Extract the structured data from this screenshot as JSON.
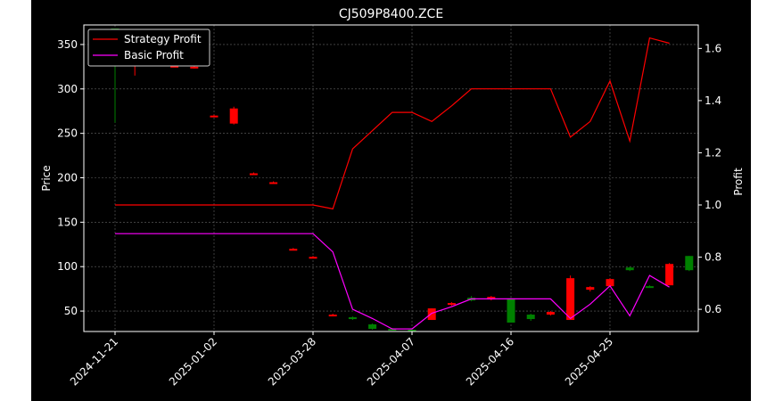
{
  "chart_data": {
    "type": "candlestick+line",
    "title": "CJ509P8400.ZCE",
    "ylabel": "Price",
    "ylabel_right": "Profit",
    "ylim": [
      27,
      372
    ],
    "ylim_right": [
      0.515,
      1.69
    ],
    "yticks": [
      50,
      100,
      150,
      200,
      250,
      300,
      350
    ],
    "yticks_right": [
      0.6,
      0.8,
      1.0,
      1.2,
      1.4,
      1.6
    ],
    "x_tick_labels": [
      {
        "index": 0,
        "label": "2024-11-21"
      },
      {
        "index": 5,
        "label": "2025-01-02"
      },
      {
        "index": 10,
        "label": "2025-03-28"
      },
      {
        "index": 15,
        "label": "2025-04-07"
      },
      {
        "index": 20,
        "label": "2025-04-16"
      },
      {
        "index": 25,
        "label": "2025-04-25"
      }
    ],
    "grid": true,
    "legend_position": "top-left",
    "colors": {
      "up": "#008000",
      "down": "#ff0000",
      "strategy": "#ff0000",
      "basic": "#ff00ff",
      "background": "#000000",
      "text": "#ffffff"
    },
    "candles": [
      {
        "open": 327,
        "high": 368,
        "low": 262,
        "close": 368
      },
      {
        "open": 330,
        "high": 332,
        "low": 315,
        "close": 327
      },
      {
        "open": 331,
        "high": 333,
        "low": 329,
        "close": 330
      },
      {
        "open": 326,
        "high": 327,
        "low": 325,
        "close": 325
      },
      {
        "open": 325,
        "high": 326,
        "low": 323,
        "close": 324
      },
      {
        "open": 270,
        "high": 271,
        "low": 269,
        "close": 269
      },
      {
        "open": 278,
        "high": 280,
        "low": 260,
        "close": 261
      },
      {
        "open": 205,
        "high": 206,
        "low": 204,
        "close": 204
      },
      {
        "open": 195,
        "high": 196,
        "low": 194,
        "close": 194
      },
      {
        "open": 120,
        "high": 121,
        "low": 119,
        "close": 119
      },
      {
        "open": 111,
        "high": 112,
        "low": 110,
        "close": 110
      },
      {
        "open": 46,
        "high": 47,
        "low": 45,
        "close": 45
      },
      {
        "open": 41,
        "high": 44,
        "low": 40,
        "close": 43
      },
      {
        "open": 30,
        "high": 36,
        "low": 29,
        "close": 35
      },
      {
        "open": 29,
        "high": 31,
        "low": 28,
        "close": 30
      },
      {
        "open": 29,
        "high": 30,
        "low": 28,
        "close": 29
      },
      {
        "open": 53,
        "high": 53,
        "low": 40,
        "close": 40
      },
      {
        "open": 59,
        "high": 60,
        "low": 56,
        "close": 57
      },
      {
        "open": 62,
        "high": 67,
        "low": 61,
        "close": 65
      },
      {
        "open": 66,
        "high": 67,
        "low": 62,
        "close": 63
      },
      {
        "open": 37,
        "high": 65,
        "low": 37,
        "close": 64
      },
      {
        "open": 41,
        "high": 47,
        "low": 39,
        "close": 46
      },
      {
        "open": 49,
        "high": 50,
        "low": 45,
        "close": 46
      },
      {
        "open": 87,
        "high": 90,
        "low": 40,
        "close": 40
      },
      {
        "open": 77,
        "high": 78,
        "low": 72,
        "close": 74
      },
      {
        "open": 86,
        "high": 87,
        "low": 77,
        "close": 78
      },
      {
        "open": 96,
        "high": 100,
        "low": 95,
        "close": 99
      },
      {
        "open": 78,
        "high": 79,
        "low": 77,
        "close": 78
      },
      {
        "open": 103,
        "high": 104,
        "low": 79,
        "close": 79
      },
      {
        "open": 96,
        "high": 112,
        "low": 95,
        "close": 112
      }
    ],
    "series": [
      {
        "name": "Strategy Profit",
        "values": [
          1.0,
          1.0,
          1.0,
          1.0,
          1.0,
          1.0,
          1.0,
          1.0,
          1.0,
          1.0,
          1.0,
          0.985,
          1.215,
          1.285,
          1.355,
          1.355,
          1.32,
          1.38,
          1.445,
          1.445,
          1.445,
          1.445,
          1.445,
          1.26,
          1.32,
          1.475,
          1.245,
          1.64,
          1.62
        ]
      },
      {
        "name": "Basic Profit",
        "values": [
          0.89,
          0.89,
          0.89,
          0.89,
          0.89,
          0.89,
          0.89,
          0.89,
          0.89,
          0.89,
          0.89,
          0.82,
          0.6,
          0.565,
          0.525,
          0.525,
          0.585,
          0.61,
          0.64,
          0.64,
          0.64,
          0.64,
          0.64,
          0.565,
          0.62,
          0.69,
          0.575,
          0.73,
          0.685
        ]
      }
    ]
  }
}
